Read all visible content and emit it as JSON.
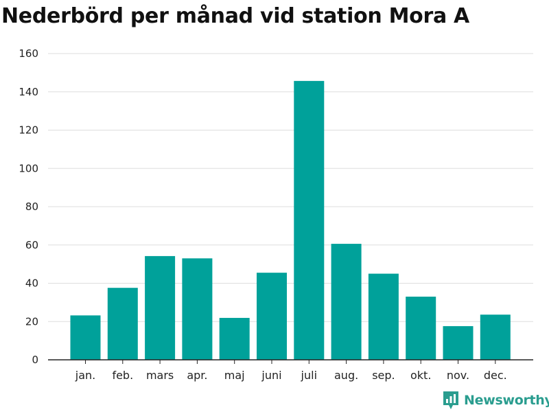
{
  "title": "Nederbörd per månad vid station Mora A",
  "brand": {
    "name": "Newsworthy"
  },
  "colors": {
    "bar": "#00A19A",
    "grid": "#dddddd",
    "axis": "#222222",
    "brand": "#2a9d8f"
  },
  "chart_data": {
    "type": "bar",
    "title": "Nederbörd per månad vid station Mora A",
    "categories": [
      "jan.",
      "feb.",
      "mars",
      "apr.",
      "maj",
      "juni",
      "juli",
      "aug.",
      "sep.",
      "okt.",
      "nov.",
      "dec."
    ],
    "values": [
      23.2,
      37.6,
      54.2,
      53.0,
      21.9,
      45.5,
      145.7,
      60.6,
      45.0,
      33.0,
      17.6,
      23.6
    ],
    "yticks": [
      0,
      20,
      40,
      60,
      80,
      100,
      120,
      140,
      160
    ],
    "ylim": [
      0,
      160
    ],
    "xlabel": "",
    "ylabel": "",
    "grid": true,
    "legend": "none"
  }
}
